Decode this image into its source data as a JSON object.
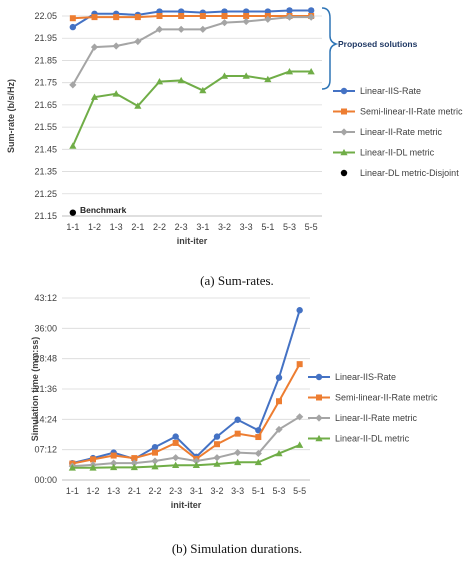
{
  "chart_data": [
    {
      "type": "line",
      "title": "",
      "xlabel": "init-iter",
      "ylabel": "Sum-rate (b/s/Hz)",
      "categories": [
        "1-1",
        "1-2",
        "1-3",
        "2-1",
        "2-2",
        "2-3",
        "3-1",
        "3-2",
        "3-3",
        "5-1",
        "5-3",
        "5-5"
      ],
      "ylim": [
        21.15,
        22.05
      ],
      "yticks": [
        "22.05",
        "21.95",
        "21.85",
        "21.75",
        "21.65",
        "21.55",
        "21.45",
        "21.35",
        "21.25",
        "21.15"
      ],
      "ytick_values": [
        22.05,
        21.95,
        21.85,
        21.75,
        21.65,
        21.55,
        21.45,
        21.35,
        21.25,
        21.15
      ],
      "grid": true,
      "legend_position": "right",
      "series": [
        {
          "name": "Linear-IIS-Rate",
          "color": "#4472c4",
          "marker": "circle",
          "values": [
            22.0,
            22.06,
            22.06,
            22.055,
            22.07,
            22.07,
            22.065,
            22.07,
            22.07,
            22.07,
            22.075,
            22.075
          ]
        },
        {
          "name": "Semi-linear-II-Rate metric",
          "color": "#ed7d31",
          "marker": "square",
          "values": [
            22.04,
            22.045,
            22.045,
            22.045,
            22.05,
            22.05,
            22.05,
            22.05,
            22.05,
            22.05,
            22.05,
            22.05
          ]
        },
        {
          "name": "Linear-II-Rate metric",
          "color": "#a5a5a5",
          "marker": "diamond",
          "values": [
            21.74,
            21.91,
            21.915,
            21.935,
            21.99,
            21.99,
            21.99,
            22.02,
            22.025,
            22.035,
            22.045,
            22.045
          ]
        },
        {
          "name": "Linear-II-DL metric",
          "color": "#70ad47",
          "marker": "triangle",
          "values": [
            21.465,
            21.685,
            21.7,
            21.645,
            21.755,
            21.76,
            21.715,
            21.78,
            21.78,
            21.765,
            21.8,
            21.8
          ]
        },
        {
          "name": "Linear-DL metric-Disjoint",
          "color": "#000000",
          "marker": "circle",
          "values": [
            21.165,
            null,
            null,
            null,
            null,
            null,
            null,
            null,
            null,
            null,
            null,
            null
          ]
        }
      ],
      "annotations": [
        "Proposed solutions",
        "Benchmark"
      ],
      "caption": "(a) Sum-rates."
    },
    {
      "type": "line",
      "title": "",
      "xlabel": "init-iter",
      "ylabel": "Simulation time (mm:ss)",
      "categories": [
        "1-1",
        "1-2",
        "1-3",
        "2-1",
        "2-2",
        "2-3",
        "3-1",
        "3-2",
        "3-3",
        "5-1",
        "5-3",
        "5-5"
      ],
      "ylim": [
        0,
        43.2
      ],
      "yticks": [
        "43:12",
        "36:00",
        "28:48",
        "21:36",
        "14:24",
        "07:12",
        "00:00"
      ],
      "ytick_values": [
        43.2,
        36.0,
        28.8,
        21.6,
        14.4,
        7.2,
        0
      ],
      "grid": true,
      "legend_position": "right",
      "series": [
        {
          "name": "Linear-IIS-Rate",
          "color": "#4472c4",
          "marker": "circle",
          "values": [
            4.0,
            5.2,
            6.5,
            5.0,
            7.8,
            10.3,
            5.5,
            10.3,
            14.3,
            11.8,
            24.3,
            40.3
          ]
        },
        {
          "name": "Semi-linear-II-Rate metric",
          "color": "#ed7d31",
          "marker": "square",
          "values": [
            3.9,
            4.9,
            5.8,
            5.2,
            6.5,
            8.8,
            5.0,
            8.5,
            11.0,
            10.2,
            18.7,
            27.5
          ]
        },
        {
          "name": "Linear-II-Rate metric",
          "color": "#a5a5a5",
          "marker": "diamond",
          "values": [
            3.3,
            3.6,
            4.0,
            4.0,
            4.5,
            5.3,
            4.5,
            5.3,
            6.5,
            6.3,
            12.0,
            15.0
          ]
        },
        {
          "name": "Linear-II-DL metric",
          "color": "#70ad47",
          "marker": "triangle",
          "values": [
            2.9,
            2.9,
            3.0,
            3.0,
            3.2,
            3.5,
            3.5,
            3.8,
            4.2,
            4.2,
            6.3,
            8.3
          ]
        }
      ],
      "caption": "(b) Simulation durations."
    }
  ],
  "icons": {
    "brace": "right-curly-brace-icon"
  }
}
